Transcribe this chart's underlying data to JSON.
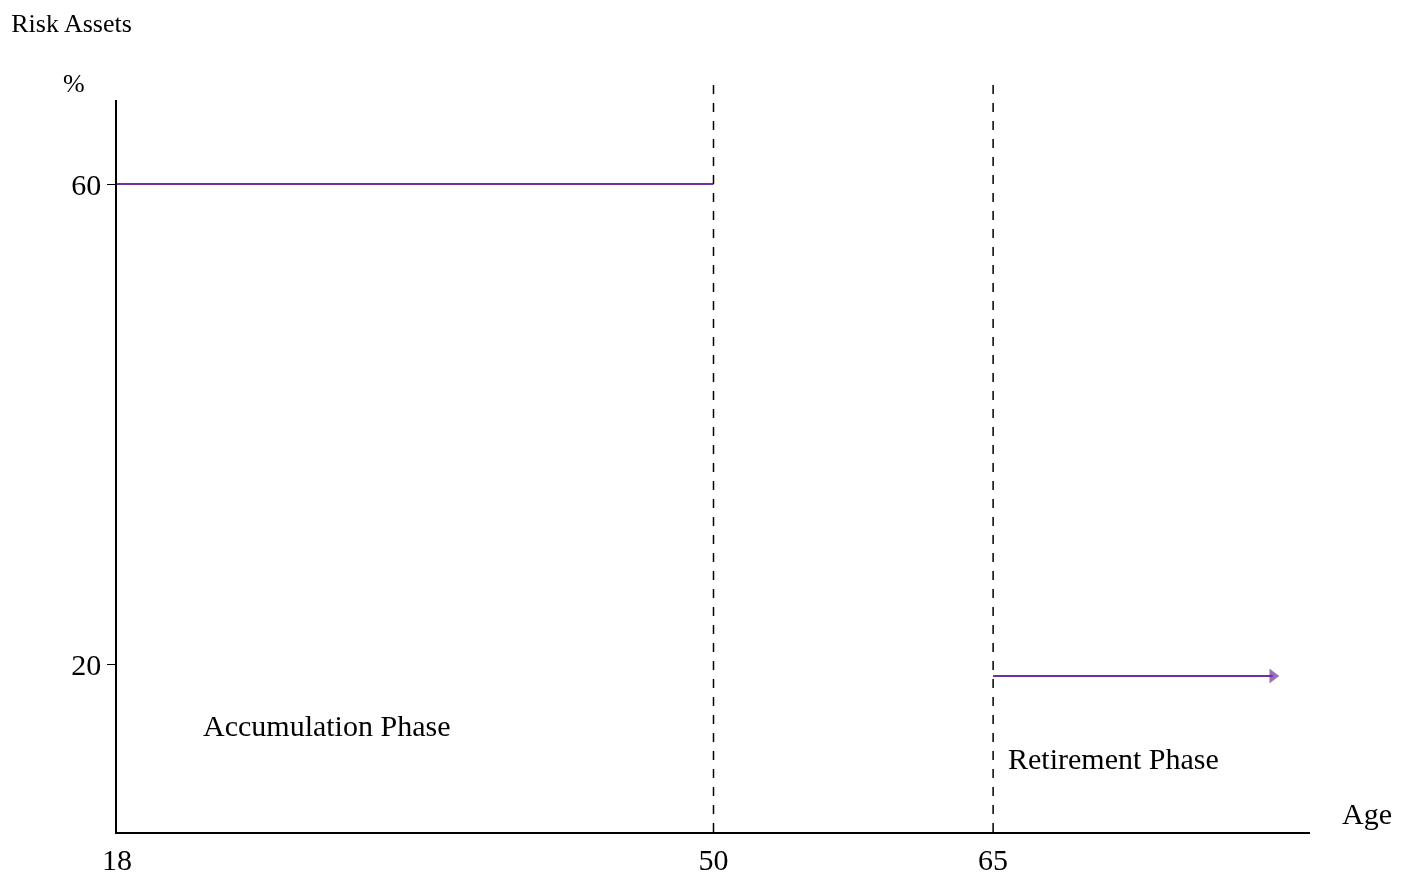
{
  "chart_data": {
    "type": "line",
    "title": "Risk Assets",
    "ylabel": "%",
    "xlabel": "Age",
    "xlim": [
      18,
      82
    ],
    "xticks": [
      18,
      50,
      65
    ],
    "ylim": [
      6,
      67
    ],
    "yticks": [
      20,
      60
    ],
    "grid": false,
    "line_style": "solid",
    "series": [
      {
        "color": "#7030a0",
        "x": [
          18,
          50
        ],
        "values": [
          60,
          60
        ]
      },
      {
        "color": "#7030a0",
        "x": [
          65,
          80
        ],
        "values": [
          19,
          19
        ]
      }
    ],
    "ref_lines": [
      {
        "axis": "x",
        "value": 50,
        "color": "#000000",
        "line_style": "dashed"
      },
      {
        "axis": "x",
        "value": 65,
        "color": "#000000",
        "line_style": "dashed"
      }
    ],
    "annotations": [
      "Accumulation Phase",
      "Retirement Phase"
    ]
  }
}
